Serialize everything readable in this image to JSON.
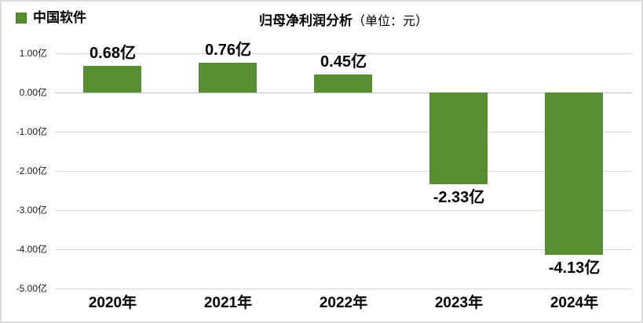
{
  "legend": {
    "label": "中国软件",
    "swatch_color": "#588e32"
  },
  "title": {
    "main": "归母净利润分析",
    "unit": "（单位：元）"
  },
  "chart_data": {
    "type": "bar",
    "title": "归母净利润分析（单位：元）",
    "series_name": "中国软件",
    "categories": [
      "2020年",
      "2021年",
      "2022年",
      "2023年",
      "2024年"
    ],
    "values": [
      0.68,
      0.76,
      0.45,
      -2.33,
      -4.13
    ],
    "value_labels": [
      "0.68亿",
      "0.76亿",
      "0.45亿",
      "-2.33亿",
      "-4.13亿"
    ],
    "unit": "亿",
    "y_ticks": [
      "1.00亿",
      "0.00亿",
      "-1.00亿",
      "-2.00亿",
      "-3.00亿",
      "-4.00亿",
      "-5.00亿"
    ],
    "ylim": [
      -5,
      1
    ],
    "xlabel": "",
    "ylabel": "",
    "grid": true,
    "legend_position": "top-left",
    "bar_color": "#588e32",
    "label_color": "#000000",
    "gridline_color": "#d9d9d9"
  }
}
